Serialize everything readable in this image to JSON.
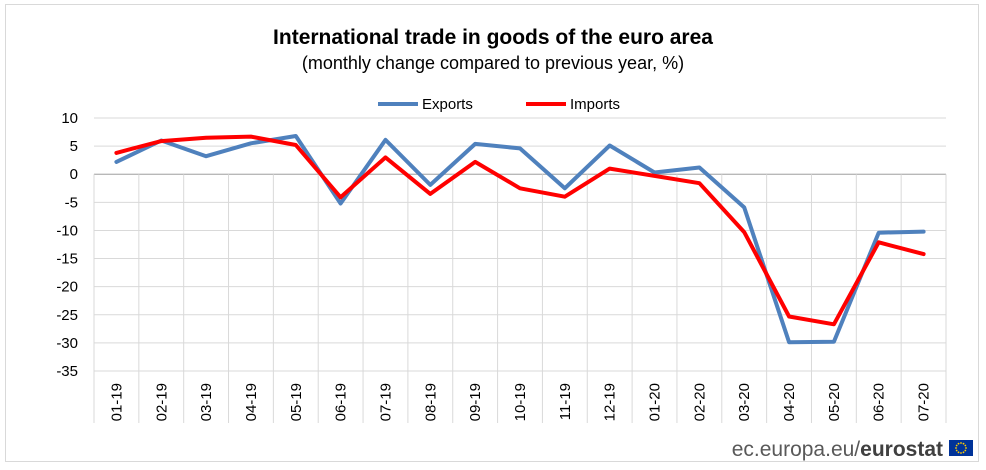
{
  "colors": {
    "exports": "#4f81bd",
    "imports": "#ff0000",
    "grid": "#d9d9d9",
    "eu_flag": "#003399",
    "eu_star": "#ffcc00"
  },
  "branding": {
    "domain": "ec.europa.eu/",
    "name": "eurostat",
    "logo_icon": "eu-flag-icon"
  },
  "chart_data": {
    "type": "line",
    "title": "International trade in goods of the euro area",
    "subtitle": "(monthly change compared to previous year, %)",
    "xlabel": "",
    "ylabel": "",
    "ylim": [
      -35,
      10
    ],
    "yticks": [
      10,
      5,
      0,
      -5,
      -10,
      -15,
      -20,
      -25,
      -30,
      -35
    ],
    "grid": true,
    "legend_position": "top-center",
    "categories": [
      "01-19",
      "02-19",
      "03-19",
      "04-19",
      "05-19",
      "06-19",
      "07-19",
      "08-19",
      "09-19",
      "10-19",
      "11-19",
      "12-19",
      "01-20",
      "02-20",
      "03-20",
      "04-20",
      "05-20",
      "06-20",
      "07-20"
    ],
    "series": [
      {
        "name": "Exports",
        "color": "#4f81bd",
        "values": [
          2.2,
          6.0,
          3.2,
          5.5,
          6.8,
          -5.2,
          6.1,
          -1.9,
          5.4,
          4.6,
          -2.5,
          5.1,
          0.3,
          1.2,
          -5.9,
          -29.9,
          -29.8,
          -10.4,
          -10.2
        ]
      },
      {
        "name": "Imports",
        "color": "#ff0000",
        "values": [
          3.8,
          5.9,
          6.5,
          6.7,
          5.2,
          -4.1,
          3.0,
          -3.5,
          2.2,
          -2.5,
          -4.0,
          1.0,
          -0.3,
          -1.6,
          -10.3,
          -25.3,
          -26.7,
          -12.1,
          -14.2
        ]
      }
    ]
  }
}
